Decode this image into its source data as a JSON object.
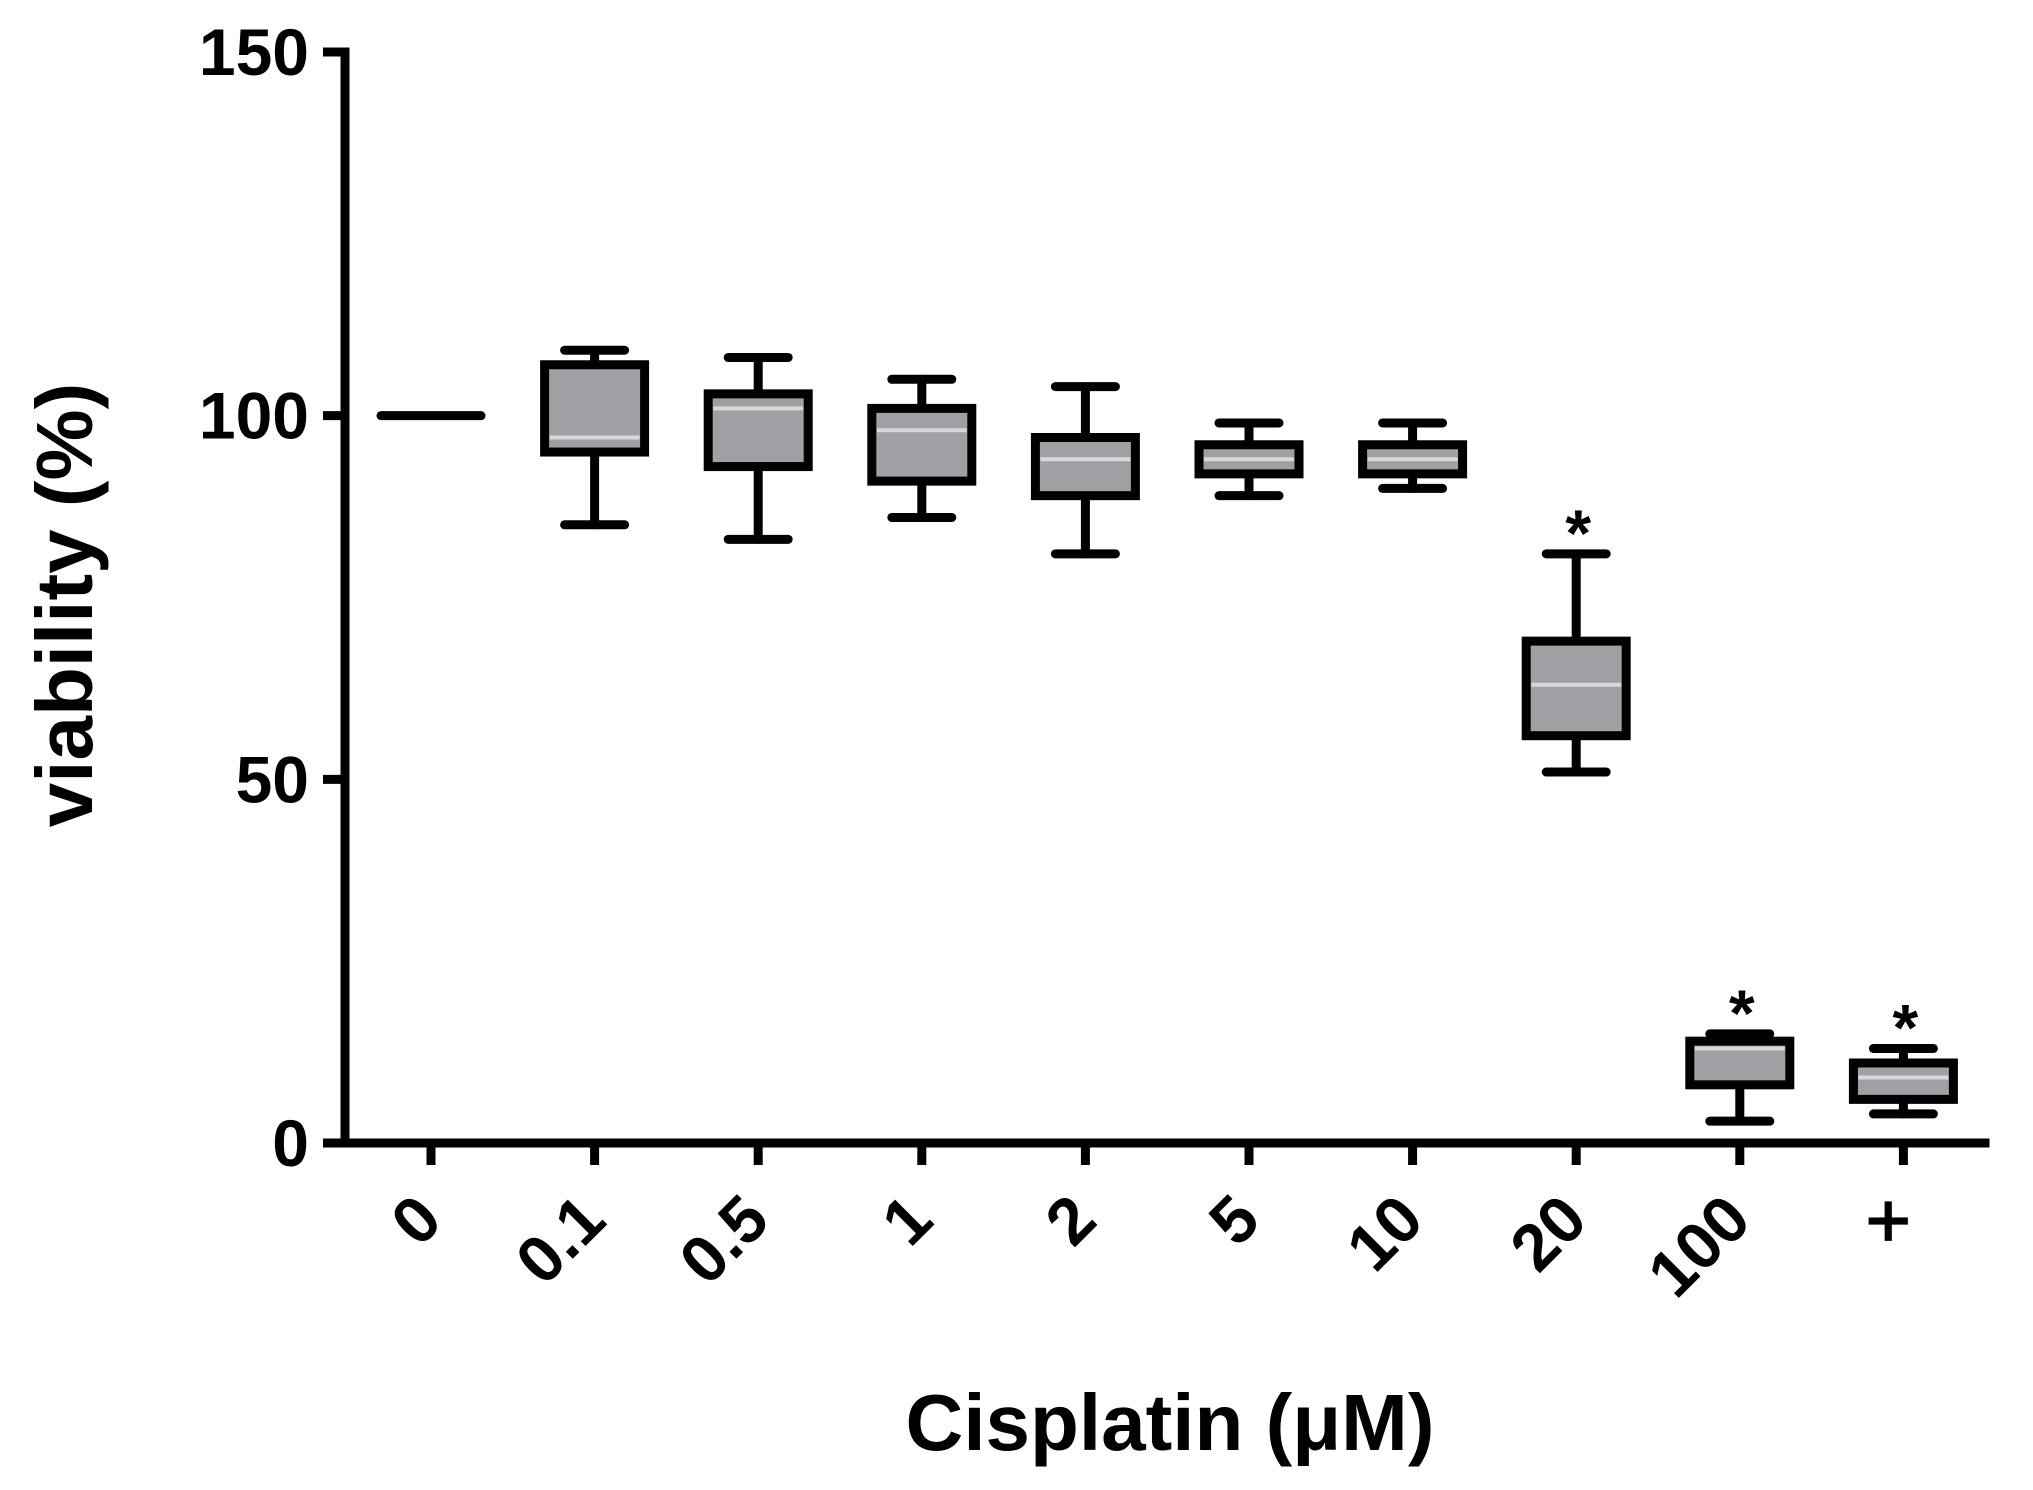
{
  "chart_data": {
    "type": "box",
    "xlabel": "Cisplatin (μM)",
    "ylabel": "viability (%)",
    "ylim": [
      0,
      150
    ],
    "yticks": [
      0,
      50,
      100,
      150
    ],
    "categories": [
      "0",
      "0.1",
      "0.5",
      "1",
      "2",
      "5",
      "10",
      "20",
      "100",
      "×"
    ],
    "box_color": "#a0a0a4",
    "median_color": "#d8d8d8",
    "boxes": [
      {
        "category": "0",
        "min": 100,
        "q1": 100,
        "median": 100,
        "q3": 100,
        "max": 100,
        "flat": true,
        "significant": false
      },
      {
        "category": "0.1",
        "min": 85,
        "q1": 95,
        "median": 97,
        "q3": 107,
        "max": 109,
        "flat": false,
        "significant": false
      },
      {
        "category": "0.5",
        "min": 83,
        "q1": 93,
        "median": 101,
        "q3": 103,
        "max": 108,
        "flat": false,
        "significant": false
      },
      {
        "category": "1",
        "min": 86,
        "q1": 91,
        "median": 98,
        "q3": 101,
        "max": 105,
        "flat": false,
        "significant": false
      },
      {
        "category": "2",
        "min": 81,
        "q1": 89,
        "median": 94,
        "q3": 97,
        "max": 104,
        "flat": false,
        "significant": false
      },
      {
        "category": "5",
        "min": 89,
        "q1": 92,
        "median": 94,
        "q3": 96,
        "max": 99,
        "flat": false,
        "significant": false
      },
      {
        "category": "10",
        "min": 90,
        "q1": 92,
        "median": 94,
        "q3": 96,
        "max": 99,
        "flat": false,
        "significant": false
      },
      {
        "category": "20",
        "min": 51,
        "q1": 56,
        "median": 63,
        "q3": 69,
        "max": 81,
        "flat": false,
        "significant": true
      },
      {
        "category": "100",
        "min": 3,
        "q1": 8,
        "median": 13,
        "q3": 14,
        "max": 15,
        "flat": false,
        "significant": true
      },
      {
        "category": "×",
        "min": 4,
        "q1": 6,
        "median": 9,
        "q3": 11,
        "max": 13,
        "flat": false,
        "significant": true
      }
    ],
    "significance_marker": "*",
    "grid": false,
    "legend": "none"
  }
}
